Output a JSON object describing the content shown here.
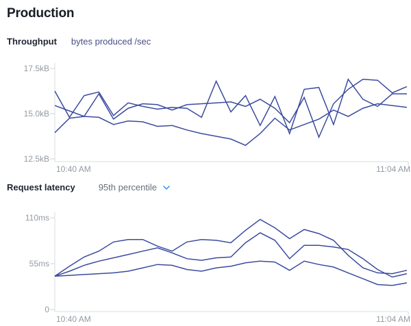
{
  "page": {
    "title": "Production"
  },
  "colors": {
    "line": "#3a4a9e",
    "axis": "#dadce1",
    "tick_label": "#939aa3",
    "metric_link": "#474f85",
    "chevron": "#4d9ef0"
  },
  "chart_data": [
    {
      "type": "line",
      "title": "Throughput",
      "subtitle": "bytes produced /sec",
      "x_axis": {
        "ticks": [
          "10:40 AM",
          "11:04 AM"
        ],
        "points": 25
      },
      "y_axis": {
        "ticks": [
          "17.5kB",
          "15.0kB",
          "12.5kB"
        ],
        "range": [
          12.5,
          17.5
        ],
        "unit": "kB"
      },
      "legend": "none",
      "grid": "off",
      "series": [
        {
          "name": "series-1",
          "values": [
            16.25,
            14.8,
            16.0,
            16.2,
            14.9,
            15.6,
            15.4,
            15.25,
            15.35,
            15.3,
            14.8,
            16.8,
            15.1,
            16.0,
            14.35,
            15.95,
            13.9,
            16.35,
            16.45,
            14.4,
            16.9,
            15.8,
            15.4,
            16.1,
            16.1
          ]
        },
        {
          "name": "series-2",
          "values": [
            15.45,
            15.15,
            14.85,
            16.1,
            14.7,
            15.3,
            15.55,
            15.5,
            15.2,
            15.5,
            15.55,
            15.6,
            15.65,
            15.4,
            15.8,
            15.3,
            14.5,
            15.9,
            13.7,
            15.55,
            16.35,
            16.9,
            16.85,
            16.15,
            16.5
          ]
        },
        {
          "name": "series-3",
          "values": [
            13.95,
            14.75,
            14.85,
            14.8,
            14.4,
            14.6,
            14.55,
            14.3,
            14.35,
            14.1,
            13.9,
            13.75,
            13.6,
            13.25,
            13.9,
            14.75,
            14.1,
            14.4,
            14.7,
            15.2,
            14.85,
            15.3,
            15.55,
            15.45,
            15.35
          ]
        }
      ]
    },
    {
      "type": "line",
      "title": "Request latency",
      "selector": "95th percentile",
      "x_axis": {
        "ticks": [
          "10:40 AM",
          "11:04 AM"
        ],
        "points": 25
      },
      "y_axis": {
        "ticks": [
          "110ms",
          "55ms",
          "0"
        ],
        "range": [
          0,
          110
        ],
        "unit": "ms"
      },
      "legend": "none",
      "grid": "off",
      "series": [
        {
          "name": "series-1",
          "values": [
            40,
            52,
            63,
            70,
            81,
            84,
            84,
            76,
            70,
            81,
            84,
            83,
            80,
            95,
            108,
            98,
            85,
            96,
            91,
            83,
            65,
            50,
            44,
            43,
            47
          ]
        },
        {
          "name": "series-2",
          "values": [
            40,
            46,
            53,
            58,
            62,
            66,
            70,
            74,
            68,
            61,
            59,
            62,
            63,
            80,
            92,
            83,
            61,
            77,
            77,
            75,
            72,
            61,
            48,
            39,
            43
          ]
        },
        {
          "name": "series-3",
          "values": [
            40,
            41,
            42,
            43,
            44,
            46,
            50,
            54,
            53,
            48,
            46,
            50,
            52,
            56,
            58,
            57,
            47,
            58,
            54,
            51,
            44,
            37,
            30,
            29,
            32
          ]
        }
      ]
    }
  ]
}
